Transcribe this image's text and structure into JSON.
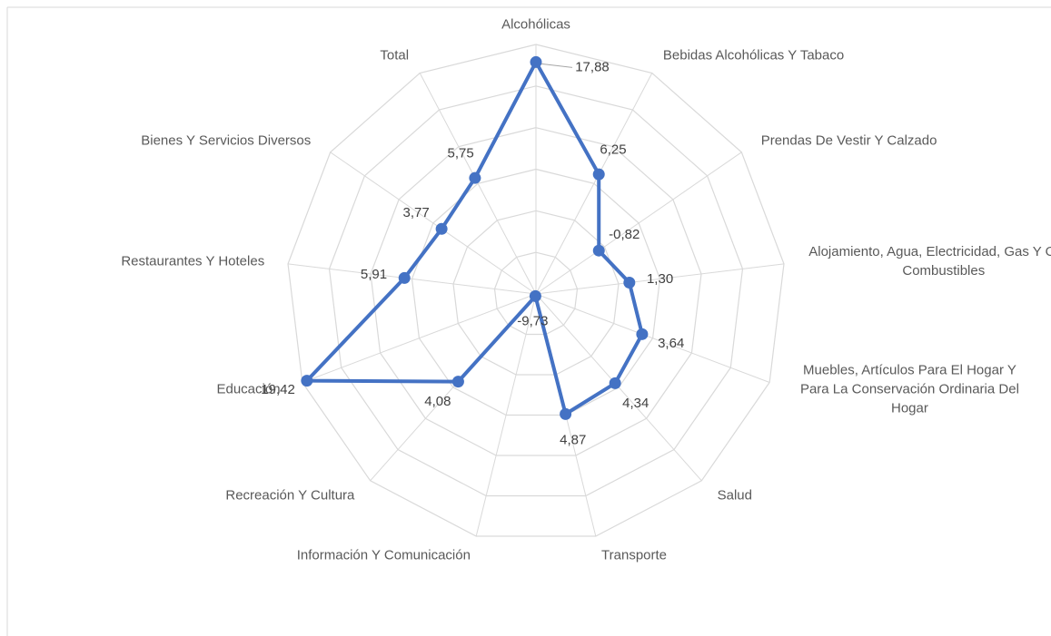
{
  "chart_data": {
    "type": "radar",
    "categories": [
      "Alcohólicas",
      "Bebidas Alcohólicas Y Tabaco",
      "Prendas De Vestir Y Calzado",
      "Alojamiento, Agua, Electricidad, Gas Y Otros Combustibles",
      "Muebles, Artículos Para El Hogar Y Para La Conservación Ordinaria Del Hogar",
      "Salud",
      "Transporte",
      "Información Y Comunicación",
      "Recreación Y Cultura",
      "Educación",
      "Restaurantes Y Hoteles",
      "Bienes Y Servicios Diversos",
      "Total"
    ],
    "values": [
      17.88,
      6.25,
      -0.82,
      1.3,
      3.64,
      4.34,
      4.87,
      -9.73,
      4.08,
      19.42,
      5.91,
      3.77,
      5.75
    ],
    "value_labels": [
      "17,88",
      "6,25",
      "-0,82",
      "1,30",
      "3,64",
      "4,34",
      "4,87",
      "-9,73",
      "4,08",
      "19,42",
      "5,91",
      "3,77",
      "5,75"
    ],
    "color": "#4472c4",
    "ylim": [
      -10,
      20
    ],
    "yticks": [
      -10,
      -5,
      0,
      5,
      10,
      15,
      20
    ],
    "grid": true
  }
}
